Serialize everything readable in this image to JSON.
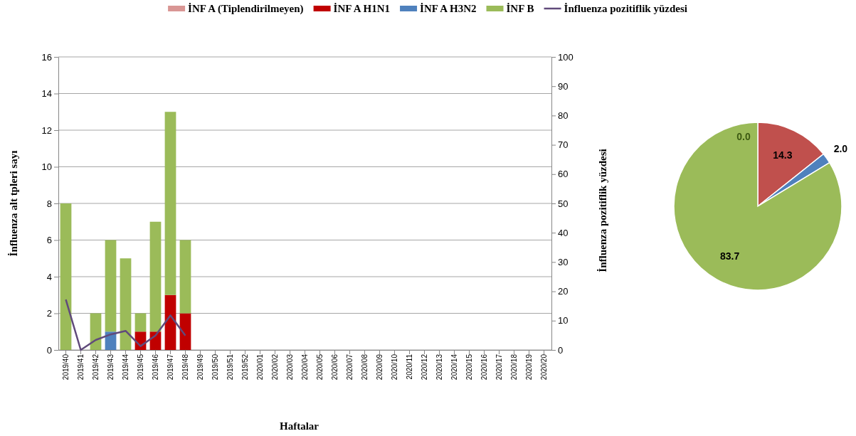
{
  "chart_data": [
    {
      "type": "bar",
      "stacked": true,
      "categories": [
        "2019/40",
        "2019/41",
        "2019/42",
        "2019/43",
        "2019/44",
        "2019/45",
        "2019/46",
        "2019/47",
        "2019/48",
        "2019/49",
        "2019/50",
        "2019/51",
        "2019/52",
        "2020/01",
        "2020/02",
        "2020/03",
        "2020/04",
        "2020/05",
        "2020/06",
        "2020/07",
        "2020/08",
        "2020/09",
        "2020/10",
        "2020/11",
        "2020/12",
        "2020/13",
        "2020/14",
        "2020/15",
        "2020/16",
        "2020/17",
        "2020/18",
        "2020/19",
        "2020/20"
      ],
      "series": [
        {
          "name": "İNF A (Tiplendirilmeyen)",
          "color": "#d99694",
          "values": [
            0,
            0,
            0,
            0,
            0,
            0,
            0,
            0,
            0,
            null,
            null,
            null,
            null,
            null,
            null,
            null,
            null,
            null,
            null,
            null,
            null,
            null,
            null,
            null,
            null,
            null,
            null,
            null,
            null,
            null,
            null,
            null,
            null
          ]
        },
        {
          "name": "İNF A H1N1",
          "color": "#c00000",
          "values": [
            0,
            0,
            0,
            0,
            0,
            1,
            1,
            3,
            2,
            null,
            null,
            null,
            null,
            null,
            null,
            null,
            null,
            null,
            null,
            null,
            null,
            null,
            null,
            null,
            null,
            null,
            null,
            null,
            null,
            null,
            null,
            null,
            null
          ]
        },
        {
          "name": "İNF A H3N2",
          "color": "#4f81bd",
          "values": [
            0,
            0,
            0,
            1,
            0,
            0,
            0,
            0,
            0,
            null,
            null,
            null,
            null,
            null,
            null,
            null,
            null,
            null,
            null,
            null,
            null,
            null,
            null,
            null,
            null,
            null,
            null,
            null,
            null,
            null,
            null,
            null,
            null
          ]
        },
        {
          "name": "İNF B",
          "color": "#9bbb59",
          "values": [
            8,
            0,
            2,
            5,
            5,
            1,
            6,
            10,
            4,
            null,
            null,
            null,
            null,
            null,
            null,
            null,
            null,
            null,
            null,
            null,
            null,
            null,
            null,
            null,
            null,
            null,
            null,
            null,
            null,
            null,
            null,
            null,
            null
          ]
        },
        {
          "name": "İnfluenza pozitiflik yüzdesi",
          "type": "line",
          "axis": "y2",
          "color": "#604a7b",
          "values": [
            17.2,
            0,
            3.4,
            5.3,
            6.5,
            1.3,
            4.9,
            11.8,
            4.9,
            null,
            null,
            null,
            null,
            null,
            null,
            null,
            null,
            null,
            null,
            null,
            null,
            null,
            null,
            null,
            null,
            null,
            null,
            null,
            null,
            null,
            null,
            null,
            null
          ]
        }
      ],
      "ylim": [
        0,
        16
      ],
      "yticks": [
        0,
        2,
        4,
        6,
        8,
        10,
        12,
        14,
        16
      ],
      "y2lim": [
        0,
        100
      ],
      "y2ticks": [
        0,
        10,
        20,
        30,
        40,
        50,
        60,
        70,
        80,
        90,
        100
      ],
      "xlabel": "Haftalar",
      "ylabel": "İnfluenza alt tpleri sayı",
      "y2label": "İnfluenza pozitiflik yüzdesi",
      "grid": "y",
      "legend": "top"
    },
    {
      "type": "pie",
      "categories": [
        null,
        null,
        null,
        null
      ],
      "values": [
        0,
        14.3,
        2.0,
        83.7
      ],
      "colors": [
        "#d99694",
        "#c0504d",
        "#4f81bd",
        "#9bbb59"
      ],
      "value_labels": [
        "0.0",
        "14.3",
        "2.0",
        "83.7"
      ]
    }
  ]
}
